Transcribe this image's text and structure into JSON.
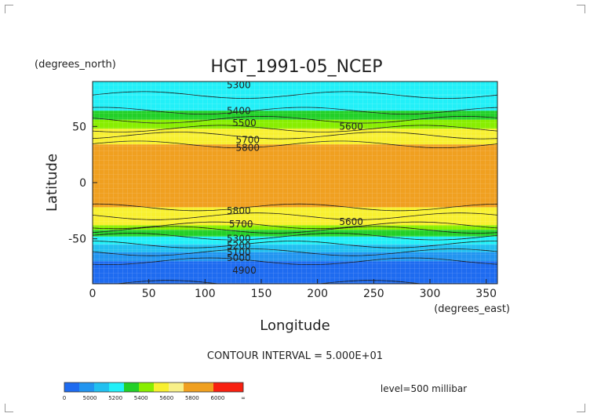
{
  "chart_data": {
    "type": "heatmap",
    "title": "HGT_1991-05_NCEP",
    "xlabel": "Longitude",
    "ylabel": "Latitude",
    "x_units": "(degrees_east)",
    "y_units": "(degrees_north)",
    "xlim": [
      0,
      360
    ],
    "ylim": [
      -90,
      90
    ],
    "x_ticks": [
      "0",
      "50",
      "100",
      "150",
      "200",
      "250",
      "300",
      "350"
    ],
    "y_ticks": [
      "50",
      "0",
      "-50"
    ],
    "contour_interval_text": "CONTOUR INTERVAL = 5.000E+01",
    "level_text": "level=500 millibar",
    "contour_labels": [
      {
        "text": "5300",
        "lon": 130,
        "lat": 87
      },
      {
        "text": "5400",
        "lon": 130,
        "lat": 64
      },
      {
        "text": "5500",
        "lon": 135,
        "lat": 53
      },
      {
        "text": "5600",
        "lon": 230,
        "lat": 50
      },
      {
        "text": "5700",
        "lon": 138,
        "lat": 38
      },
      {
        "text": "5800",
        "lon": 138,
        "lat": 31
      },
      {
        "text": "5800",
        "lon": 130,
        "lat": -25
      },
      {
        "text": "5700",
        "lon": 132,
        "lat": -37
      },
      {
        "text": "5600",
        "lon": 230,
        "lat": -35
      },
      {
        "text": "5300",
        "lon": 130,
        "lat": -50
      },
      {
        "text": "5200",
        "lon": 130,
        "lat": -56
      },
      {
        "text": "5100",
        "lon": 130,
        "lat": -62
      },
      {
        "text": "5000",
        "lon": 130,
        "lat": -67
      },
      {
        "text": "4900",
        "lon": 135,
        "lat": -78
      }
    ],
    "colorbar": {
      "labels": [
        "0",
        "5000",
        "5200",
        "5400",
        "5600",
        "5800",
        "6000",
        "∞"
      ],
      "colors": [
        "#1e6bf0",
        "#2295f0",
        "#22c0f0",
        "#22f0f8",
        "#22d028",
        "#88ee00",
        "#f8f030",
        "#f8f088",
        "#f0a020",
        "#f0a020",
        "#f82010",
        "#f82010"
      ]
    },
    "zones": [
      {
        "min_lat": 78,
        "max_lat": 90,
        "color": "#22f0f8"
      },
      {
        "min_lat": 64,
        "max_lat": 78,
        "color": "#22f0f8"
      },
      {
        "min_lat": 56,
        "max_lat": 64,
        "color": "#22d028"
      },
      {
        "min_lat": 48,
        "max_lat": 56,
        "color": "#88ee00"
      },
      {
        "min_lat": 42,
        "max_lat": 48,
        "color": "#f8f030"
      },
      {
        "min_lat": 34,
        "max_lat": 42,
        "color": "#f8f030"
      },
      {
        "min_lat": -22,
        "max_lat": 34,
        "color": "#f0a020"
      },
      {
        "min_lat": -30,
        "max_lat": -22,
        "color": "#f8f030"
      },
      {
        "min_lat": -38,
        "max_lat": -30,
        "color": "#f8f030"
      },
      {
        "min_lat": -42,
        "max_lat": -38,
        "color": "#88ee00"
      },
      {
        "min_lat": -48,
        "max_lat": -42,
        "color": "#22d028"
      },
      {
        "min_lat": -55,
        "max_lat": -48,
        "color": "#22f0f8"
      },
      {
        "min_lat": -62,
        "max_lat": -55,
        "color": "#22c0f0"
      },
      {
        "min_lat": -70,
        "max_lat": -62,
        "color": "#2295f0"
      },
      {
        "min_lat": -90,
        "max_lat": -70,
        "color": "#1e6bf0"
      }
    ]
  }
}
